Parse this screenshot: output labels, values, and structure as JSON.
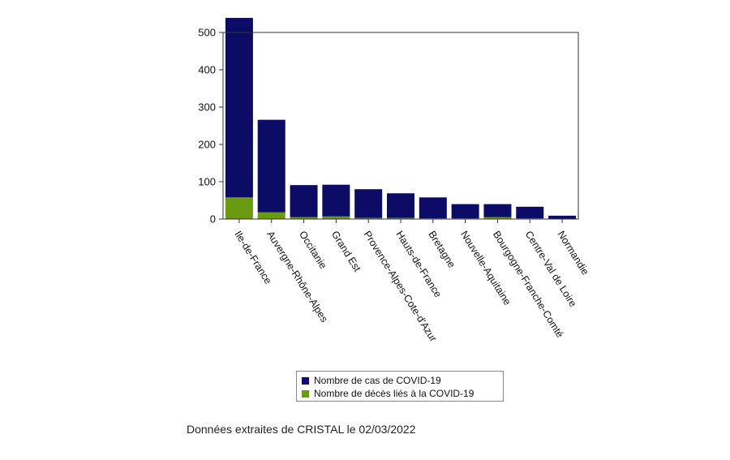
{
  "chart_data": {
    "type": "bar",
    "stacked": true,
    "categories": [
      "Ile-de-France",
      "Auvergne-Rhône-Alpes",
      "Occitanie",
      "Grand Est",
      "Provence-Alpes-Cote-d'Azur",
      "Hauts-de-France",
      "Bretagne",
      "Nouvelle-Aquitaine",
      "Bourgogne-Franche-Comté",
      "Centre-Val de Loire",
      "Normandie"
    ],
    "series": [
      {
        "name": "Nombre de décès liés à la COVID-19",
        "color": "#6a9a10",
        "values": [
          58,
          18,
          5,
          7,
          3,
          3,
          2,
          2,
          5,
          2,
          1
        ]
      },
      {
        "name": "Nombre de cas de COVID-19",
        "color": "#0c0c66",
        "values": [
          481,
          248,
          86,
          85,
          77,
          66,
          56,
          38,
          35,
          31,
          8
        ]
      }
    ],
    "ylim": [
      0,
      500
    ],
    "yticks": [
      0,
      100,
      200,
      300,
      400,
      500
    ],
    "legend": "bottom",
    "grid": false
  },
  "footer": {
    "note": "Données extraites de CRISTAL le 02/03/2022"
  }
}
